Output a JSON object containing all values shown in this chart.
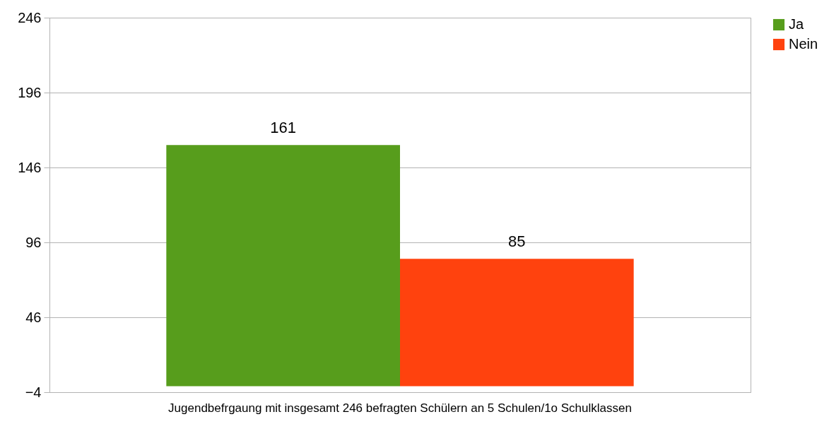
{
  "chart_data": {
    "type": "bar",
    "categories": [
      "Jugendbefrgaung mit insgesamt 246 befragten Schülern an 5 Schulen/1o Schulklassen"
    ],
    "series": [
      {
        "name": "Ja",
        "color": "#579d1c",
        "values": [
          161
        ]
      },
      {
        "name": "Nein",
        "color": "#ff420e",
        "values": [
          85
        ]
      }
    ],
    "ylim": [
      -4,
      246
    ],
    "yticks": [
      -4,
      46,
      96,
      146,
      196,
      246
    ],
    "grid": "y",
    "legend": "right",
    "data_labels": true
  }
}
